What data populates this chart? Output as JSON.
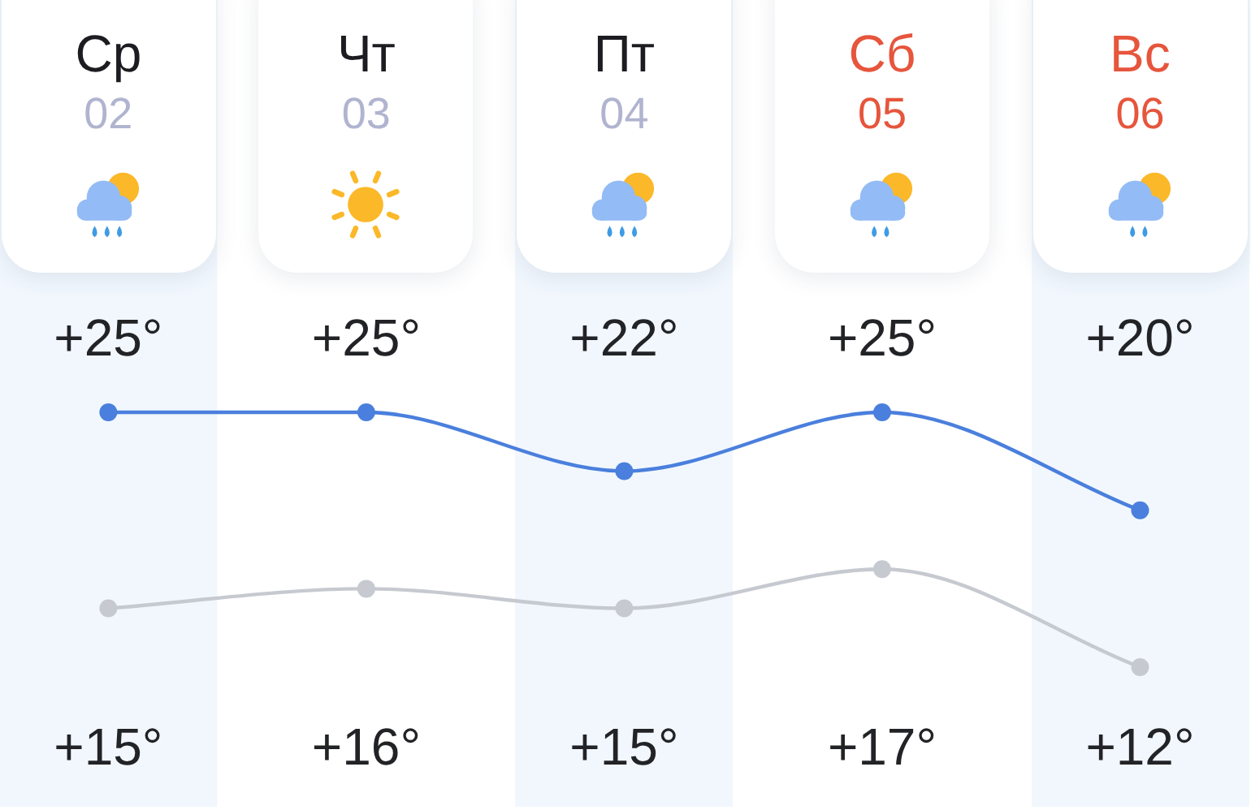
{
  "chart_data": {
    "type": "line",
    "categories": [
      "Ср\n02",
      "Чт\n03",
      "Пт\n04",
      "Сб\n05",
      "Вс\n06"
    ],
    "series": [
      {
        "color": "#4a7fdd",
        "values": [
          25,
          25,
          22,
          25,
          20
        ],
        "value_labels": [
          "+25°",
          "+25°",
          "+22°",
          "+25°",
          "+20°"
        ]
      },
      {
        "color": "#c6cad0",
        "values": [
          15,
          16,
          15,
          17,
          12
        ],
        "value_labels": [
          "+15°",
          "+16°",
          "+15°",
          "+17°",
          "+12°"
        ]
      }
    ],
    "marker": "circle",
    "line_style": "solid",
    "legend": false,
    "grid": false,
    "tick_labels": "x"
  }
}
